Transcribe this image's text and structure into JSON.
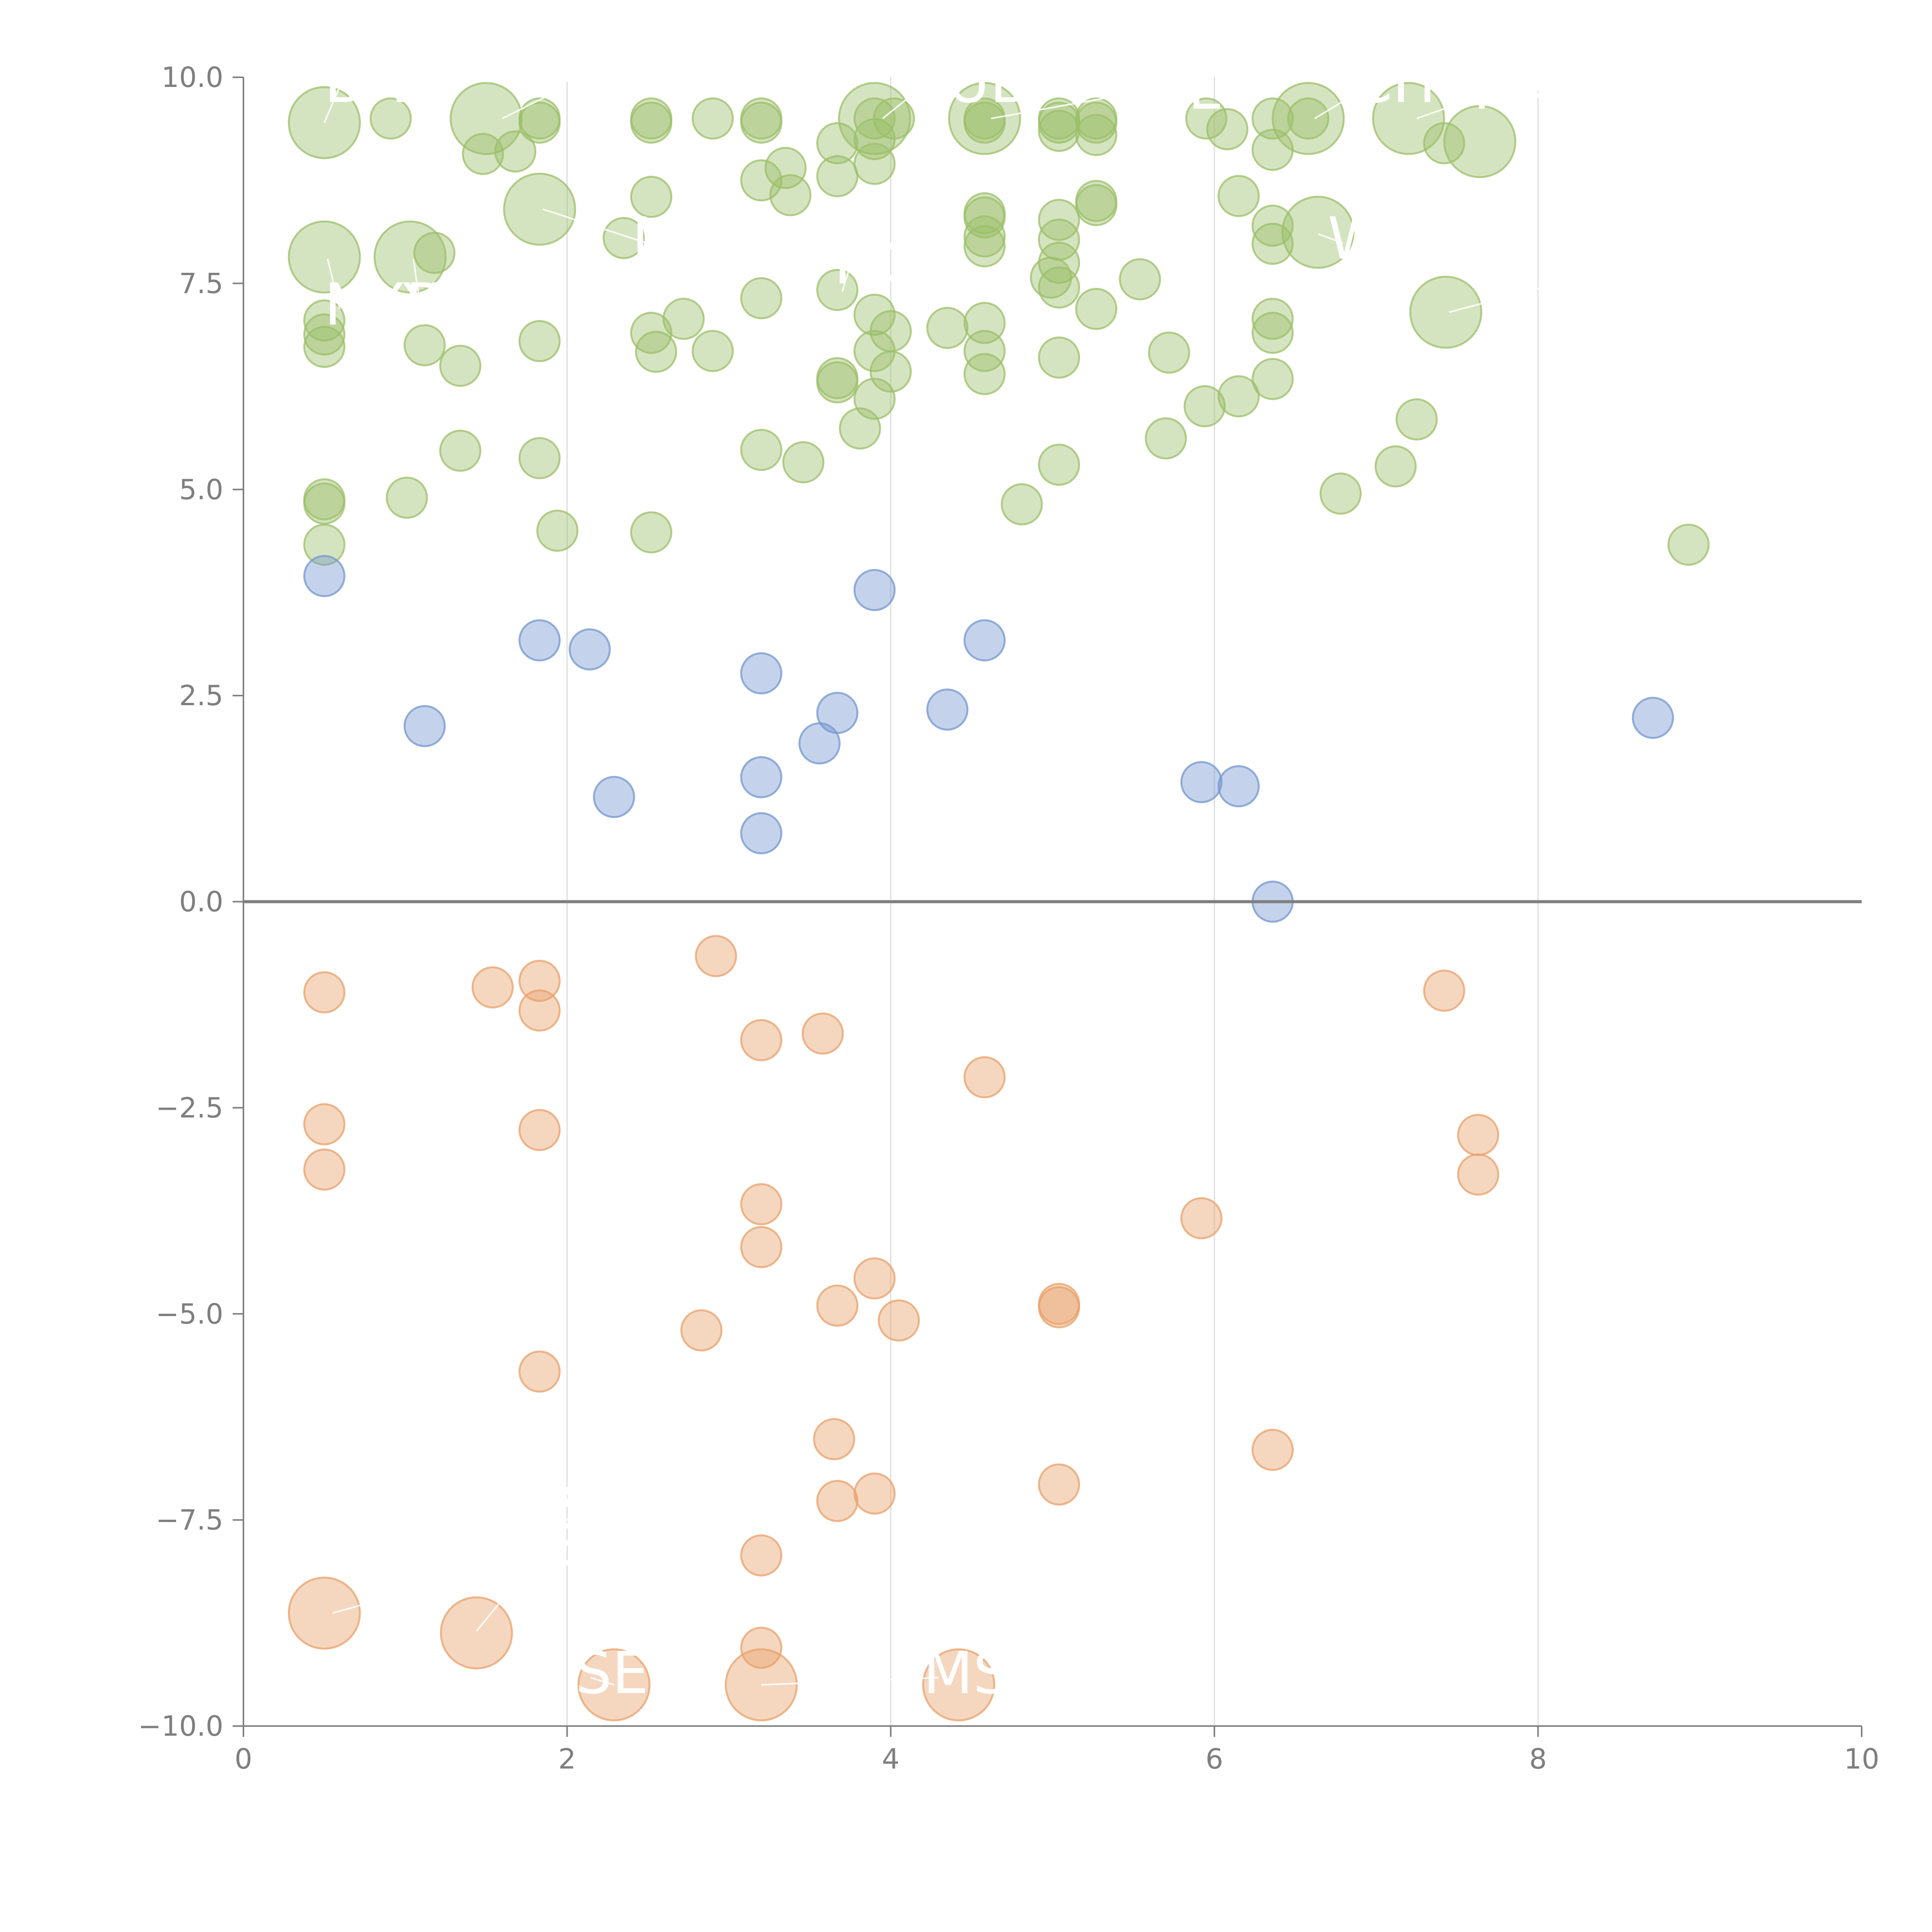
{
  "colors": {
    "green": "#9cbf69",
    "blue": "#7396cf",
    "orange": "#e8a06a",
    "axis": "#808080",
    "grid": "#dcdcdc",
    "tick_text": "#7f7f7f"
  },
  "chart_data": {
    "type": "scatter",
    "title": "",
    "xlabel": "",
    "ylabel": "",
    "xlim": [
      0,
      10
    ],
    "ylim": [
      -10,
      10
    ],
    "x_ticks": [
      {
        "value": 0,
        "label": "0"
      },
      {
        "value": 2,
        "label": "2"
      },
      {
        "value": 4,
        "label": "4"
      },
      {
        "value": 6,
        "label": "6"
      },
      {
        "value": 8,
        "label": "8"
      },
      {
        "value": 10,
        "label": "10"
      }
    ],
    "y_ticks": [
      {
        "value": 10,
        "label": "10.0"
      },
      {
        "value": 7.5,
        "label": "7.5"
      },
      {
        "value": 5,
        "label": "5.0"
      },
      {
        "value": 2.5,
        "label": "2.5"
      },
      {
        "value": 0,
        "label": "0.0"
      },
      {
        "value": -2.5,
        "label": "−2.5"
      },
      {
        "value": -5,
        "label": "−5.0"
      },
      {
        "value": -7.5,
        "label": "−7.5"
      },
      {
        "value": -10,
        "label": "−10.0"
      }
    ],
    "grid": "vertical only",
    "zero_line": true,
    "series": [
      {
        "name": "positive-high",
        "color": "#9cbf69",
        "points": [
          [
            0.5,
            9.45,
            2
          ],
          [
            0.91,
            9.5,
            0
          ],
          [
            1.5,
            9.5,
            2
          ],
          [
            1.83,
            9.5,
            0
          ],
          [
            1.83,
            9.45,
            0
          ],
          [
            2.52,
            9.5,
            0
          ],
          [
            2.52,
            9.45,
            0
          ],
          [
            2.9,
            9.5,
            0
          ],
          [
            3.2,
            9.5,
            0
          ],
          [
            3.2,
            9.45,
            0
          ],
          [
            3.9,
            9.5,
            2
          ],
          [
            3.9,
            9.5,
            0
          ],
          [
            4.02,
            9.5,
            0
          ],
          [
            4.58,
            9.5,
            2
          ],
          [
            4.58,
            9.5,
            0
          ],
          [
            4.58,
            9.45,
            0
          ],
          [
            5.04,
            9.5,
            0
          ],
          [
            5.04,
            9.45,
            0
          ],
          [
            5.04,
            9.35,
            0
          ],
          [
            5.27,
            9.5,
            0
          ],
          [
            5.27,
            9.45,
            0
          ],
          [
            5.27,
            9.3,
            0
          ],
          [
            5.95,
            9.5,
            0
          ],
          [
            6.08,
            9.37,
            0
          ],
          [
            6.36,
            9.5,
            0
          ],
          [
            6.58,
            9.5,
            2
          ],
          [
            6.58,
            9.5,
            0
          ],
          [
            7.2,
            9.5,
            2
          ],
          [
            7.64,
            9.22,
            2
          ],
          [
            7.42,
            9.2,
            0
          ],
          [
            1.48,
            9.07,
            0
          ],
          [
            1.68,
            9.1,
            0
          ],
          [
            3.2,
            8.75,
            0
          ],
          [
            3.35,
            8.9,
            0
          ],
          [
            3.38,
            8.57,
            0
          ],
          [
            3.67,
            9.2,
            0
          ],
          [
            3.67,
            8.8,
            0
          ],
          [
            3.9,
            9.25,
            0
          ],
          [
            3.9,
            8.95,
            0
          ],
          [
            6.36,
            9.12,
            0
          ],
          [
            1.83,
            8.4,
            2
          ],
          [
            2.52,
            8.55,
            0
          ],
          [
            2.35,
            8.05,
            0
          ],
          [
            6.15,
            8.56,
            0
          ],
          [
            4.58,
            8.35,
            0
          ],
          [
            4.58,
            8.3,
            0
          ],
          [
            4.58,
            8.07,
            0
          ],
          [
            4.58,
            7.95,
            0
          ],
          [
            5.04,
            8.27,
            0
          ],
          [
            5.04,
            8.03,
            0
          ],
          [
            5.27,
            8.5,
            0
          ],
          [
            5.27,
            8.45,
            0
          ],
          [
            6.36,
            8.2,
            0
          ],
          [
            6.36,
            7.98,
            0
          ],
          [
            6.64,
            8.12,
            2
          ],
          [
            0.5,
            7.82,
            2
          ],
          [
            1.03,
            7.82,
            2
          ],
          [
            1.18,
            7.87,
            0
          ],
          [
            5.04,
            7.75,
            0
          ],
          [
            4.99,
            7.57,
            0
          ],
          [
            5.04,
            7.45,
            0
          ],
          [
            5.54,
            7.55,
            0
          ],
          [
            3.2,
            7.32,
            0
          ],
          [
            3.67,
            7.42,
            0
          ],
          [
            2.72,
            7.07,
            0
          ],
          [
            3.9,
            7.12,
            0
          ],
          [
            4.0,
            6.92,
            0
          ],
          [
            4.35,
            6.96,
            0
          ],
          [
            4.58,
            7.02,
            0
          ],
          [
            5.27,
            7.19,
            0
          ],
          [
            7.43,
            7.15,
            2
          ],
          [
            0.5,
            7.05,
            0
          ],
          [
            0.5,
            6.88,
            0
          ],
          [
            0.5,
            6.73,
            0
          ],
          [
            1.12,
            6.75,
            0
          ],
          [
            1.34,
            6.5,
            0
          ],
          [
            1.83,
            6.8,
            0
          ],
          [
            2.52,
            6.9,
            0
          ],
          [
            2.55,
            6.67,
            0
          ],
          [
            2.9,
            6.68,
            0
          ],
          [
            3.9,
            6.68,
            0
          ],
          [
            4.58,
            6.68,
            0
          ],
          [
            4.0,
            6.43,
            0
          ],
          [
            5.04,
            6.6,
            0
          ],
          [
            5.72,
            6.66,
            0
          ],
          [
            6.36,
            7.07,
            0
          ],
          [
            6.36,
            6.9,
            0
          ],
          [
            3.67,
            6.35,
            0
          ],
          [
            3.67,
            6.3,
            0
          ],
          [
            3.9,
            6.1,
            0
          ],
          [
            4.58,
            6.4,
            0
          ],
          [
            5.94,
            6.01,
            0
          ],
          [
            6.15,
            6.13,
            0
          ],
          [
            6.36,
            6.34,
            0
          ],
          [
            3.81,
            5.74,
            0
          ],
          [
            3.2,
            5.48,
            0
          ],
          [
            3.46,
            5.33,
            0
          ],
          [
            5.7,
            5.62,
            0
          ],
          [
            7.25,
            5.85,
            0
          ],
          [
            1.34,
            5.47,
            0
          ],
          [
            1.83,
            5.38,
            0
          ],
          [
            5.04,
            5.3,
            0
          ],
          [
            7.12,
            5.28,
            0
          ],
          [
            0.5,
            4.88,
            0
          ],
          [
            0.5,
            4.83,
            0
          ],
          [
            1.01,
            4.9,
            0
          ],
          [
            4.81,
            4.82,
            0
          ],
          [
            6.78,
            4.95,
            0
          ],
          [
            0.5,
            4.33,
            0
          ],
          [
            1.94,
            4.5,
            0
          ],
          [
            2.52,
            4.48,
            0
          ],
          [
            8.93,
            4.33,
            0
          ]
        ]
      },
      {
        "name": "positive-low",
        "color": "#7396cf",
        "points": [
          [
            0.5,
            3.95,
            0
          ],
          [
            1.83,
            3.17,
            0
          ],
          [
            2.14,
            3.06,
            0
          ],
          [
            3.9,
            3.78,
            0
          ],
          [
            4.58,
            3.17,
            0
          ],
          [
            1.12,
            2.13,
            0
          ],
          [
            3.2,
            2.77,
            0
          ],
          [
            3.67,
            2.29,
            0
          ],
          [
            4.35,
            2.33,
            0
          ],
          [
            8.71,
            2.23,
            0
          ],
          [
            3.56,
            1.92,
            0
          ],
          [
            2.29,
            1.27,
            0
          ],
          [
            3.2,
            1.51,
            0
          ],
          [
            3.2,
            0.83,
            0
          ],
          [
            5.92,
            1.45,
            0
          ],
          [
            6.15,
            1.4,
            0
          ],
          [
            6.36,
            0.0,
            0
          ]
        ]
      },
      {
        "name": "negative",
        "color": "#e8a06a",
        "points": [
          [
            0.5,
            -1.1,
            0
          ],
          [
            1.54,
            -1.04,
            0
          ],
          [
            1.83,
            -0.96,
            0
          ],
          [
            1.83,
            -1.32,
            0
          ],
          [
            2.92,
            -0.66,
            0
          ],
          [
            3.2,
            -1.68,
            0
          ],
          [
            3.58,
            -1.6,
            0
          ],
          [
            7.42,
            -1.08,
            0
          ],
          [
            4.58,
            -2.13,
            0
          ],
          [
            0.5,
            -2.7,
            0
          ],
          [
            0.5,
            -3.25,
            0
          ],
          [
            1.83,
            -2.77,
            0
          ],
          [
            7.63,
            -2.83,
            0
          ],
          [
            7.63,
            -3.31,
            0
          ],
          [
            5.92,
            -3.84,
            0
          ],
          [
            3.2,
            -3.67,
            0
          ],
          [
            3.2,
            -4.19,
            0
          ],
          [
            3.9,
            -4.57,
            0
          ],
          [
            3.67,
            -4.9,
            0
          ],
          [
            4.05,
            -5.08,
            0
          ],
          [
            5.04,
            -4.88,
            0
          ],
          [
            5.04,
            -4.92,
            0
          ],
          [
            2.83,
            -5.2,
            0
          ],
          [
            1.83,
            -5.7,
            0
          ],
          [
            3.65,
            -6.52,
            0
          ],
          [
            6.36,
            -6.65,
            0
          ],
          [
            3.67,
            -7.27,
            0
          ],
          [
            3.9,
            -7.18,
            0
          ],
          [
            5.04,
            -7.07,
            0
          ],
          [
            3.2,
            -7.93,
            0
          ],
          [
            0.5,
            -8.63,
            2
          ],
          [
            1.44,
            -8.87,
            2
          ],
          [
            3.2,
            -9.05,
            0
          ],
          [
            2.29,
            -9.5,
            2
          ],
          [
            3.2,
            -9.5,
            2
          ],
          [
            4.42,
            -9.5,
            2
          ]
        ]
      }
    ],
    "labels": [
      {
        "text": "BAN",
        "x": 0.5,
        "y": 9.7,
        "ax": 0.5,
        "ay": 9.45
      },
      {
        "text": "FR",
        "x": 1.9,
        "y": 9.7,
        "ax": 1.6,
        "ay": 9.5
      },
      {
        "text": "CUB",
        "x": 4.1,
        "y": 9.7,
        "ax": 3.95,
        "ay": 9.5
      },
      {
        "text": "ATL",
        "x": 5.4,
        "y": 9.62,
        "ax": 4.62,
        "ay": 9.5
      },
      {
        "text": "CHW",
        "x": 6.85,
        "y": 9.7,
        "ax": 6.62,
        "ay": 9.5
      },
      {
        "text": "RAY",
        "x": 7.6,
        "y": 9.62,
        "ax": 7.25,
        "ay": 9.5
      },
      {
        "text": "MIL",
        "x": 2.4,
        "y": 7.8,
        "ax": 1.85,
        "ay": 8.4
      },
      {
        "text": "NYY",
        "x": 0.5,
        "y": 7.0,
        "ax": 0.52,
        "ay": 7.8
      },
      {
        "text": "PHI",
        "x": 1.0,
        "y": 7.0,
        "ax": 1.05,
        "ay": 7.8
      },
      {
        "text": "HOU",
        "x": 3.65,
        "y": 7.5,
        "ax": 3.7,
        "ay": 7.4
      },
      {
        "text": "WSH",
        "x": 6.7,
        "y": 7.8,
        "ax": 6.64,
        "ay": 8.1
      },
      {
        "text": "LAD",
        "x": 8.0,
        "y": 7.3,
        "ax": 7.45,
        "ay": 7.15
      },
      {
        "text": "SF",
        "x": 1.94,
        "y": -7.6,
        "ax": 1.44,
        "ay": -8.85
      },
      {
        "text": "SEL",
        "x": 2.05,
        "y": -9.6,
        "ax": 2.29,
        "ay": -9.5
      },
      {
        "text": "BOS",
        "x": 1.85,
        "y": -8.05,
        "ax": 0.55,
        "ay": -8.63
      },
      {
        "text": "MSW",
        "x": 4.2,
        "y": -9.6,
        "ax": 3.2,
        "ay": -9.5
      }
    ]
  }
}
